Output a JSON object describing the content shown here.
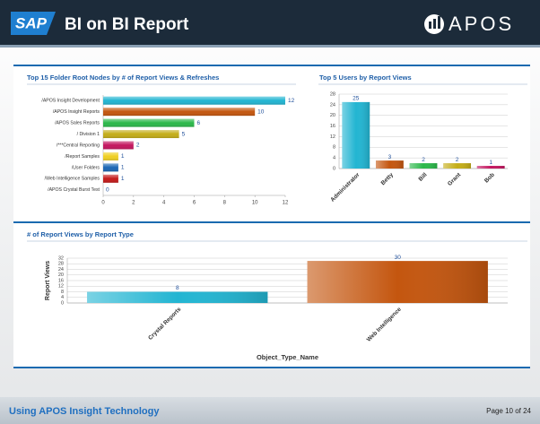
{
  "header": {
    "logo": "SAP",
    "title": "BI on BI Report",
    "brand": "APOS"
  },
  "footer": {
    "text": "Using APOS Insight Technology",
    "page": "Page 10 of 24"
  },
  "chart_data": [
    {
      "type": "bar",
      "orientation": "horizontal",
      "title": "Top 15 Folder Root Nodes by # of Report Views & Refreshes",
      "categories": [
        "/APOS Insight Development",
        "/APOS Insight Reports",
        "/APOS Sales Reports",
        "/ Division 1",
        "/***Central Reporting",
        "/Report Samples",
        "/User Folders",
        "/Web Intelligence Samples",
        "/APOS Crystal Burst Test"
      ],
      "values": [
        12,
        10,
        6,
        5,
        2,
        1,
        1,
        1,
        0
      ],
      "colors": [
        "#22b5d2",
        "#c4560f",
        "#2bb84a",
        "#c4ad18",
        "#c4155f",
        "#f0d022",
        "#1a66b4",
        "#c41a1a",
        "#888888"
      ],
      "xlim": [
        0,
        12
      ],
      "xticks": [
        0,
        2,
        4,
        6,
        8,
        10,
        12
      ],
      "grid": false
    },
    {
      "type": "bar",
      "orientation": "vertical",
      "title": "Top 5 Users by Report Views",
      "categories": [
        "Administrator",
        "Betty",
        "Bill",
        "Grant",
        "Bob"
      ],
      "values": [
        25,
        3,
        2,
        2,
        1
      ],
      "colors": [
        "#22b5d2",
        "#c4560f",
        "#2bb84a",
        "#c4ad18",
        "#c4155f"
      ],
      "ylim": [
        0,
        28
      ],
      "yticks": [
        0,
        4,
        8,
        12,
        16,
        20,
        24,
        28
      ],
      "grid": true
    },
    {
      "type": "bar",
      "orientation": "vertical",
      "title": "# of Report Views by Report Type",
      "y_label": "Report Views",
      "x_label": "Object_Type_Name",
      "categories": [
        "Crystal Reports",
        "Web Intelligence"
      ],
      "values": [
        8,
        30
      ],
      "colors": [
        "#22b5d2",
        "#c4560f"
      ],
      "ylim": [
        0,
        32
      ],
      "yticks": [
        0,
        4,
        8,
        12,
        16,
        20,
        24,
        28,
        32
      ],
      "grid": true
    }
  ]
}
